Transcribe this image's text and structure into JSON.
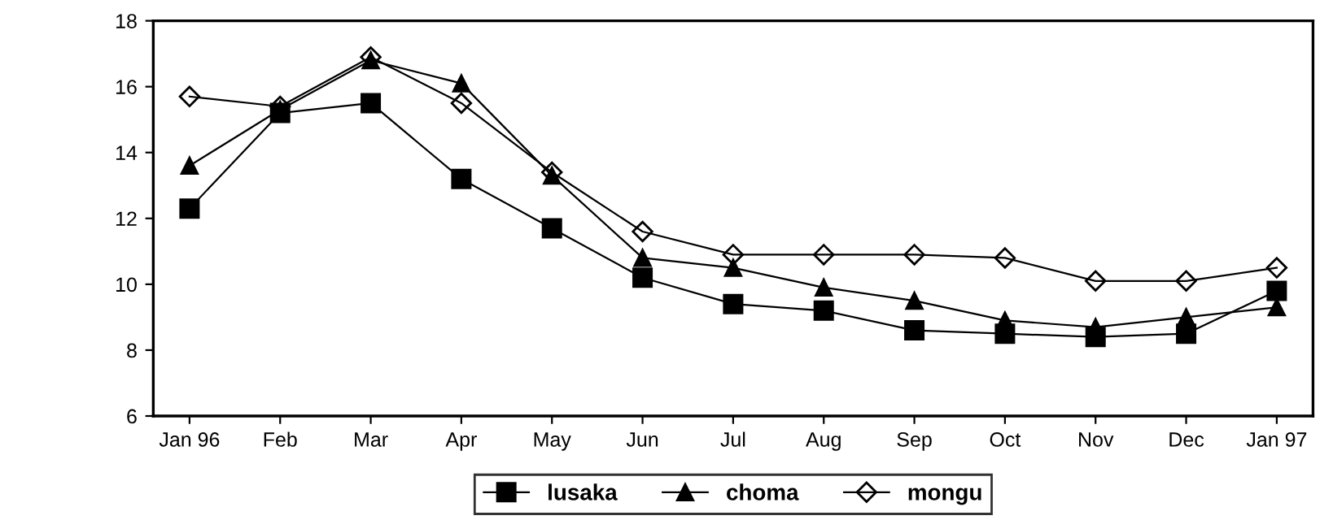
{
  "chart_data": {
    "type": "line",
    "categories": [
      "Jan 96",
      "Feb",
      "Mar",
      "Apr",
      "May",
      "Jun",
      "Jul",
      "Aug",
      "Sep",
      "Oct",
      "Nov",
      "Dec",
      "Jan 97"
    ],
    "series": [
      {
        "name": "lusaka",
        "color": "#000000",
        "marker": "square",
        "values": [
          12.3,
          15.2,
          15.5,
          13.2,
          11.7,
          10.2,
          9.4,
          9.2,
          8.6,
          8.5,
          8.4,
          8.5,
          9.8
        ]
      },
      {
        "name": "choma",
        "color": "#000000",
        "marker": "triangle",
        "values": [
          13.6,
          15.3,
          16.8,
          16.1,
          13.3,
          10.8,
          10.5,
          9.9,
          9.5,
          8.9,
          8.7,
          9.0,
          9.3
        ]
      },
      {
        "name": "mongu",
        "color": "#000000",
        "marker": "diamond",
        "values": [
          15.7,
          15.4,
          16.9,
          15.5,
          13.4,
          11.6,
          10.9,
          10.9,
          10.9,
          10.8,
          10.1,
          10.1,
          10.5
        ]
      }
    ],
    "ylim": [
      6,
      18
    ],
    "yticks": [
      6,
      8,
      10,
      12,
      14,
      16,
      18
    ],
    "grid": false,
    "legend": "bottom",
    "line_style": "solid"
  }
}
